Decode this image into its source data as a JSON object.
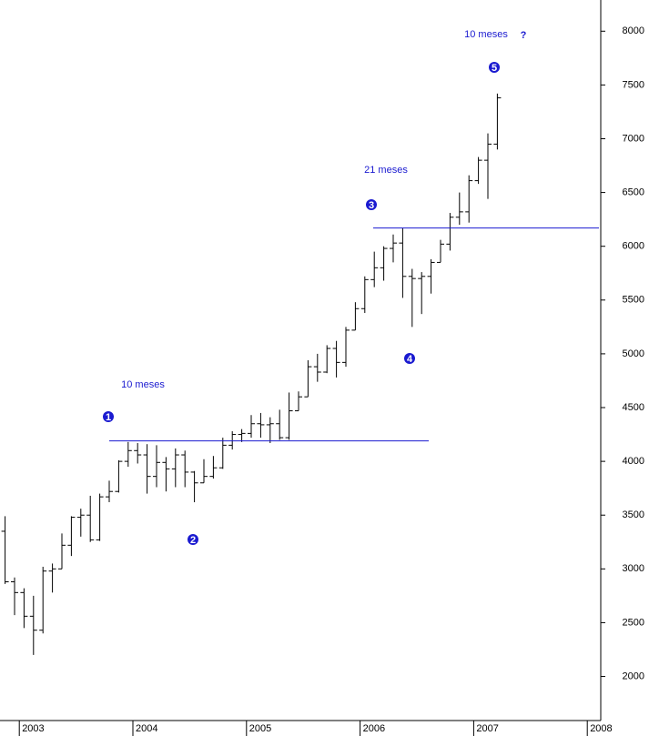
{
  "chart_data": {
    "type": "ohlc",
    "color": "#000000",
    "annotation_color": "#1a1ad0",
    "categories": [
      null,
      "2003",
      null,
      null,
      null,
      null,
      null,
      null,
      null,
      null,
      null,
      null,
      null,
      "2004",
      null,
      null,
      null,
      null,
      null,
      null,
      null,
      null,
      null,
      null,
      null,
      "2005",
      null,
      null,
      null,
      null,
      null,
      null,
      null,
      null,
      null,
      null,
      null,
      "2006",
      null,
      null,
      null,
      null,
      null,
      null,
      null,
      null,
      null,
      null,
      null,
      "2007",
      null,
      null,
      null,
      null,
      null,
      null,
      null,
      null,
      null,
      null,
      null,
      "2008",
      null
    ],
    "open": [
      3350,
      2880,
      2780,
      2560,
      2430,
      2980,
      3000,
      3220,
      3480,
      3500,
      3270,
      3670,
      3720,
      4000,
      4100,
      4060,
      3860,
      3990,
      3930,
      4060,
      3900,
      3800,
      3860,
      3940,
      4150,
      4250,
      4260,
      4350,
      4340,
      4350,
      4220,
      4470,
      4600,
      4880,
      4830,
      5050,
      4920,
      5220,
      5420,
      5690,
      5800,
      5980,
      6030,
      5720,
      5700,
      5720,
      5850,
      6020,
      6270,
      6320,
      6610,
      6800,
      6950,
      null,
      null,
      null,
      null,
      null,
      null,
      null,
      null,
      null,
      null
    ],
    "high": [
      3490,
      2920,
      2820,
      2750,
      3020,
      3050,
      3330,
      3490,
      3560,
      3680,
      3700,
      3820,
      4010,
      4180,
      4170,
      4160,
      4150,
      4040,
      4120,
      4100,
      3910,
      4020,
      4050,
      4220,
      4280,
      4300,
      4430,
      4450,
      4410,
      4480,
      4640,
      4650,
      4940,
      5000,
      5080,
      5120,
      5250,
      5480,
      5720,
      5950,
      6000,
      6110,
      6170,
      5790,
      5760,
      5880,
      6060,
      6310,
      6500,
      6660,
      6830,
      7050,
      7420,
      null,
      null,
      null,
      null,
      null,
      null,
      null,
      null,
      null,
      null
    ],
    "low": [
      2860,
      2570,
      2450,
      2200,
      2400,
      2780,
      3000,
      3120,
      3300,
      3250,
      3260,
      3620,
      3710,
      3950,
      3980,
      3700,
      3760,
      3720,
      3760,
      3760,
      3620,
      3800,
      3840,
      3930,
      4110,
      4180,
      4220,
      4220,
      4170,
      4200,
      4200,
      4470,
      4600,
      4740,
      4820,
      4780,
      4880,
      5220,
      5380,
      5620,
      5680,
      5850,
      5520,
      5250,
      5370,
      5560,
      5850,
      5960,
      6200,
      6220,
      6580,
      6440,
      6900,
      null,
      null,
      null,
      null,
      null,
      null,
      null,
      null,
      null,
      null
    ],
    "close": [
      2880,
      2780,
      2560,
      2430,
      2980,
      3000,
      3220,
      3480,
      3500,
      3270,
      3670,
      3720,
      4000,
      4100,
      4060,
      3860,
      3990,
      3930,
      4060,
      3900,
      3800,
      3860,
      3940,
      4150,
      4250,
      4260,
      4350,
      4340,
      4350,
      4220,
      4470,
      4600,
      4880,
      4830,
      5050,
      4920,
      5220,
      5420,
      5690,
      5800,
      5980,
      6030,
      5720,
      5700,
      5720,
      5850,
      6020,
      6270,
      6320,
      6610,
      6800,
      6950,
      7380,
      null,
      null,
      null,
      null,
      null,
      null,
      null,
      null,
      null,
      null
    ],
    "ylim": [
      1590,
      8290
    ],
    "yticks": [
      2000,
      2500,
      3000,
      3500,
      4000,
      4500,
      5000,
      5500,
      6000,
      6500,
      7000,
      7500,
      8000
    ],
    "hlines": [
      4190,
      6170
    ],
    "markers": [
      "1",
      "2",
      "3",
      "4",
      "5"
    ],
    "annotations": [
      "10 meses",
      "21 meses",
      "10 meses",
      "?"
    ]
  }
}
